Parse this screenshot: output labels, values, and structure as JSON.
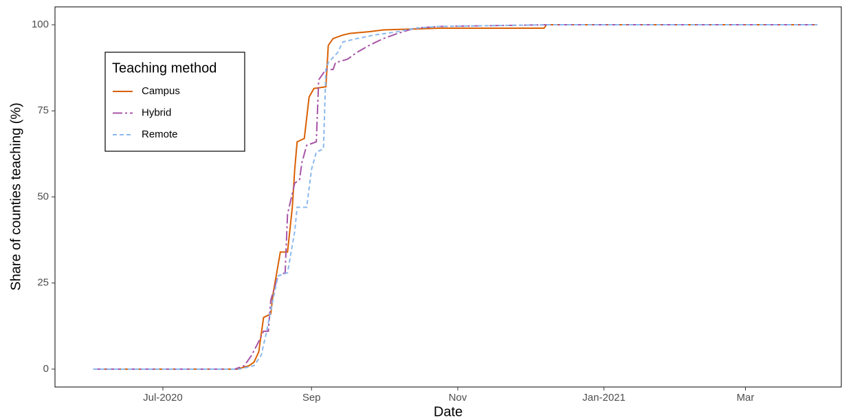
{
  "chart_data": {
    "type": "line",
    "x_label": "Date",
    "y_label": "Share of counties teaching (%)",
    "legend_title": "Teaching method",
    "legend_position": "top-left",
    "xlim": [
      "2020-05-17",
      "2021-04-10"
    ],
    "xticks": [
      {
        "value": "2020-07-01",
        "label": "Jul-2020"
      },
      {
        "value": "2020-09-01",
        "label": "Sep"
      },
      {
        "value": "2020-11-01",
        "label": "Nov"
      },
      {
        "value": "2021-01-01",
        "label": "Jan-2021"
      },
      {
        "value": "2021-03-01",
        "label": "Mar"
      }
    ],
    "ylim": [
      -5.2,
      105.2
    ],
    "yticks": [
      0,
      25,
      50,
      75,
      100
    ],
    "grid": false,
    "series": [
      {
        "name": "Campus",
        "color": "#d95f02",
        "linetype": "solid",
        "x": [
          "2020-06-02",
          "2020-08-01",
          "2020-08-06",
          "2020-08-08",
          "2020-08-10",
          "2020-08-12",
          "2020-08-15",
          "2020-08-16",
          "2020-08-18",
          "2020-08-19",
          "2020-08-22",
          "2020-08-24",
          "2020-08-25",
          "2020-08-26",
          "2020-08-29",
          "2020-08-31",
          "2020-09-02",
          "2020-09-07",
          "2020-09-08",
          "2020-09-10",
          "2020-09-14",
          "2020-09-17",
          "2020-09-25",
          "2020-10-01",
          "2020-10-24",
          "2020-12-07",
          "2020-12-08",
          "2021-03-31"
        ],
        "values": [
          0,
          0,
          1,
          2,
          5,
          15,
          16,
          22,
          30,
          34,
          34,
          47,
          58,
          66,
          67,
          79,
          81.5,
          82,
          94,
          96,
          97,
          97.5,
          98,
          98.5,
          99,
          99,
          100,
          100
        ]
      },
      {
        "name": "Hybrid",
        "color": "#a754a6",
        "linetype": "longdash",
        "x": [
          "2020-06-02",
          "2020-07-31",
          "2020-08-04",
          "2020-08-07",
          "2020-08-10",
          "2020-08-12",
          "2020-08-14",
          "2020-08-15",
          "2020-08-18",
          "2020-08-21",
          "2020-08-22",
          "2020-08-25",
          "2020-08-27",
          "2020-08-28",
          "2020-08-30",
          "2020-09-03",
          "2020-09-04",
          "2020-09-07",
          "2020-09-10",
          "2020-09-11",
          "2020-09-16",
          "2020-09-20",
          "2020-09-25",
          "2020-10-01",
          "2020-10-07",
          "2020-10-14",
          "2020-10-24",
          "2020-12-08",
          "2021-03-31"
        ],
        "values": [
          0,
          0,
          1,
          4,
          8,
          11,
          11,
          20,
          27,
          28,
          45,
          54,
          55,
          60,
          65,
          66,
          84,
          87,
          87,
          89,
          90,
          92,
          94,
          96,
          97.5,
          99,
          99.5,
          100,
          100
        ]
      },
      {
        "name": "Remote",
        "color": "#8ab8ee",
        "linetype": "dashed",
        "x": [
          "2020-06-02",
          "2020-08-02",
          "2020-08-08",
          "2020-08-11",
          "2020-08-13",
          "2020-08-15",
          "2020-08-18",
          "2020-08-22",
          "2020-08-25",
          "2020-08-26",
          "2020-08-30",
          "2020-09-01",
          "2020-09-03",
          "2020-09-06",
          "2020-09-07",
          "2020-09-08",
          "2020-09-12",
          "2020-09-14",
          "2020-09-20",
          "2020-09-27",
          "2020-10-07",
          "2020-10-14",
          "2020-10-24",
          "2020-12-08",
          "2021-03-31"
        ],
        "values": [
          0,
          0,
          1,
          4,
          10,
          17,
          27,
          28,
          40,
          47,
          47,
          58,
          63,
          64,
          87,
          89,
          92,
          95,
          96,
          97,
          98,
          99,
          99.5,
          100,
          100
        ]
      }
    ]
  }
}
